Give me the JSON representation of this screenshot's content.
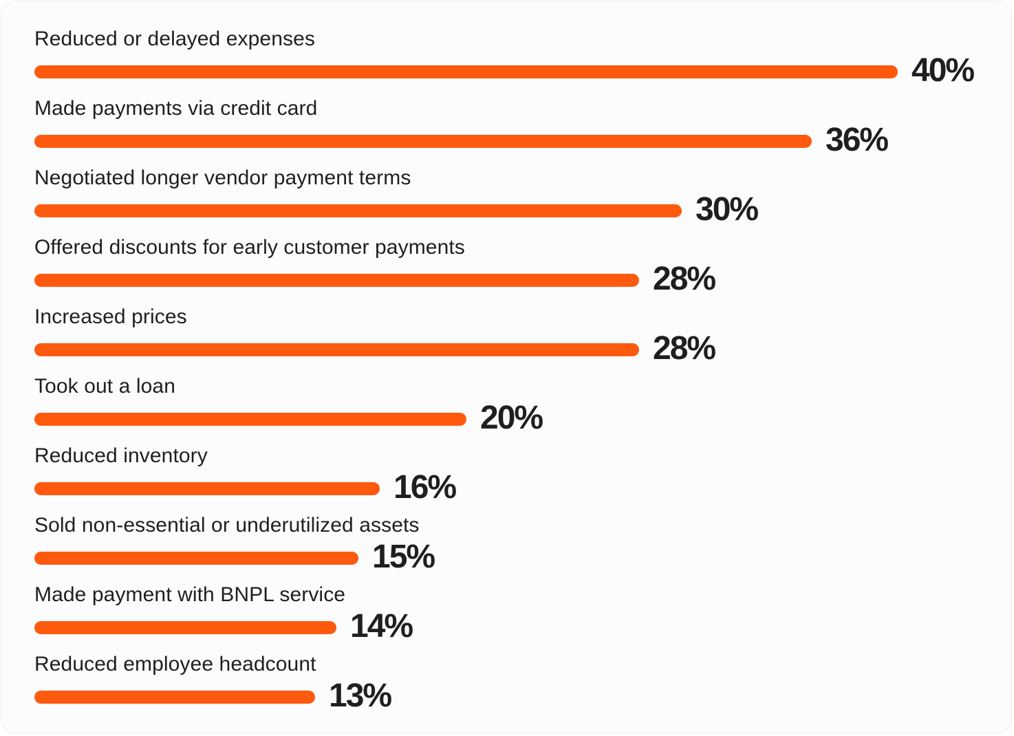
{
  "chart_data": {
    "type": "bar",
    "orientation": "horizontal",
    "title": "",
    "xlabel": "",
    "ylabel": "",
    "xlim": [
      0,
      40
    ],
    "grid": false,
    "bar_color": "#fe5a0f",
    "categories": [
      "Reduced or delayed expenses",
      "Made payments via credit card",
      "Negotiated longer vendor payment terms",
      "Offered discounts for early customer payments",
      "Increased prices",
      "Took out a loan",
      "Reduced inventory",
      "Sold non-essential or underutilized assets",
      "Made payment with BNPL service",
      "Reduced employee headcount"
    ],
    "values": [
      40,
      36,
      30,
      28,
      28,
      20,
      16,
      15,
      14,
      13
    ],
    "value_labels": [
      "40%",
      "36%",
      "30%",
      "28%",
      "28%",
      "20%",
      "16%",
      "15%",
      "14%",
      "13%"
    ]
  }
}
